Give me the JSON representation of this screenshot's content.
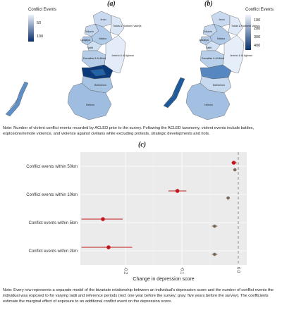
{
  "panel_a": {
    "label": "(a)",
    "legend_title": "Conflict Events",
    "legend_ticks": [
      "50",
      "100"
    ]
  },
  "panel_b": {
    "label": "(b)",
    "legend_title": "Conflict Events",
    "legend_ticks": [
      "100",
      "200",
      "300",
      "400"
    ]
  },
  "map_labels": [
    "Jenin",
    "Tubas & Northern Valleys",
    "Tulkarm",
    "Nablus",
    "Qalqiliya",
    "Salfit",
    "Ramallah & Al-Bireh",
    "Jericho & Al Aghwar",
    "Bethlehem",
    "Hebron"
  ],
  "note_top": "Note: Number of violent conflict events recorded by ACLED prior to the survey. Following the ACLED taxonomy, violent events include battles, explosions/remote violence, and violence against civilians while excluding protests, strategic developments and riots.",
  "panel_c": {
    "label": "(c)"
  },
  "note_bottom": "Note: Every row represents a separate model of the bivariate relationship between an individual's depression score and the number of conflict events the individual was exposed to for varying radii and reference periods (red: one year before the survey; gray: five years before the survey). The coefficients estimate the marginal effect of exposure to an additional conflict event on the depression score.",
  "colors": {
    "red": "#c0171e",
    "gray": "#7a6a5a",
    "panel_bg": "#ebebeb",
    "grid": "#ffffff"
  },
  "chart_data": {
    "type": "scatter",
    "title": "",
    "xlabel": "Change in depression score",
    "ylabel": "",
    "categories": [
      "Conflict events within 50km",
      "Conflict events within 10km",
      "Conflict events within 5km",
      "Conflict events within 2km"
    ],
    "xlim": [
      -0.28,
      0.015
    ],
    "x_ticks": [
      -0.2,
      -0.1,
      0.0
    ],
    "x_tick_labels": [
      "-0.2",
      "-0.1",
      "0.0"
    ],
    "reference_line": 0.0,
    "series": [
      {
        "name": "",
        "color": "#c0171e",
        "estimates": [
          -0.008,
          -0.108,
          -0.24,
          -0.23
        ],
        "ci_low": [
          -0.012,
          -0.124,
          -0.278,
          -0.278
        ],
        "ci_high": [
          -0.003,
          -0.092,
          -0.205,
          -0.188
        ]
      },
      {
        "name": "",
        "color": "#7a6a5a",
        "estimates": [
          -0.006,
          -0.018,
          -0.042,
          -0.042
        ],
        "ci_low": [
          -0.008,
          -0.021,
          -0.047,
          -0.047
        ],
        "ci_high": [
          -0.004,
          -0.015,
          -0.037,
          -0.037
        ]
      }
    ]
  }
}
